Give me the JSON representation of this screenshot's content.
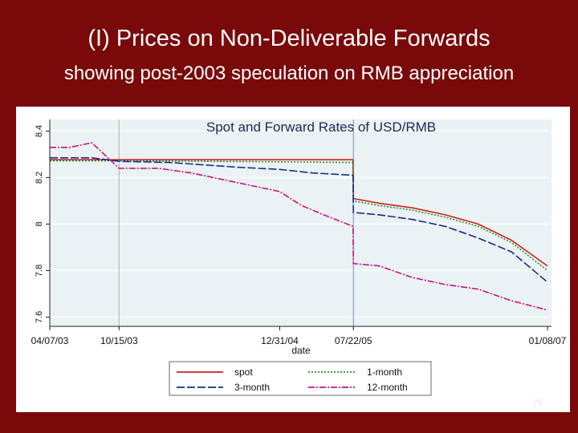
{
  "slide": {
    "title": "(I) Prices on Non-Deliverable Forwards",
    "subtitle": "showing post-2003 speculation on RMB appreciation",
    "page_number": "75"
  },
  "chart_data": {
    "type": "line",
    "title": "Spot and Forward Rates of USD/RMB",
    "xlabel": "date",
    "ylabel": "",
    "x_tick_labels": [
      "04/07/03",
      "10/15/03",
      "12/31/04",
      "07/22/05",
      "01/08/07"
    ],
    "y_tick_labels": [
      "7.6",
      "7.8",
      "8",
      "8.2",
      "8.4"
    ],
    "ylim": [
      7.56,
      8.45
    ],
    "xlim": [
      "2003-04-07",
      "2007-01-08"
    ],
    "grid": "horizontal",
    "legend_position": "bottom",
    "vertical_lines": [
      "2003-10-15",
      "2005-07-22"
    ],
    "series": [
      {
        "name": "spot",
        "color": "#cc2222",
        "dash": "solid",
        "points": [
          [
            "2003-04-07",
            8.277
          ],
          [
            "2003-10-15",
            8.277
          ],
          [
            "2004-06-01",
            8.277
          ],
          [
            "2004-12-31",
            8.277
          ],
          [
            "2005-07-21",
            8.277
          ],
          [
            "2005-07-22",
            8.11
          ],
          [
            "2005-10-01",
            8.09
          ],
          [
            "2006-01-01",
            8.07
          ],
          [
            "2006-04-01",
            8.04
          ],
          [
            "2006-07-01",
            8.0
          ],
          [
            "2006-10-01",
            7.93
          ],
          [
            "2007-01-08",
            7.82
          ]
        ]
      },
      {
        "name": "1-month",
        "color": "#2e8b2e",
        "dash": "2,2",
        "points": [
          [
            "2003-04-07",
            8.272
          ],
          [
            "2003-10-15",
            8.272
          ],
          [
            "2004-06-01",
            8.27
          ],
          [
            "2004-12-31",
            8.268
          ],
          [
            "2005-07-21",
            8.265
          ],
          [
            "2005-07-22",
            8.1
          ],
          [
            "2005-10-01",
            8.08
          ],
          [
            "2006-01-01",
            8.06
          ],
          [
            "2006-04-01",
            8.03
          ],
          [
            "2006-07-01",
            7.99
          ],
          [
            "2006-10-01",
            7.92
          ],
          [
            "2007-01-08",
            7.8
          ]
        ]
      },
      {
        "name": "3-month",
        "color": "#1a2a8c",
        "dash": "10,3",
        "points": [
          [
            "2003-04-07",
            8.285
          ],
          [
            "2003-08-01",
            8.285
          ],
          [
            "2003-10-15",
            8.27
          ],
          [
            "2004-03-01",
            8.265
          ],
          [
            "2004-06-01",
            8.255
          ],
          [
            "2004-09-01",
            8.245
          ],
          [
            "2004-12-31",
            8.235
          ],
          [
            "2005-04-01",
            8.22
          ],
          [
            "2005-07-21",
            8.21
          ],
          [
            "2005-07-22",
            8.05
          ],
          [
            "2005-10-01",
            8.04
          ],
          [
            "2006-01-01",
            8.02
          ],
          [
            "2006-04-01",
            7.99
          ],
          [
            "2006-07-01",
            7.94
          ],
          [
            "2006-10-01",
            7.88
          ],
          [
            "2007-01-08",
            7.75
          ]
        ]
      },
      {
        "name": "12-month",
        "color": "#cc1177",
        "dash": "8,2,2,2",
        "points": [
          [
            "2003-04-07",
            8.33
          ],
          [
            "2003-06-01",
            8.33
          ],
          [
            "2003-08-01",
            8.35
          ],
          [
            "2003-10-15",
            8.24
          ],
          [
            "2004-02-01",
            8.24
          ],
          [
            "2004-05-01",
            8.22
          ],
          [
            "2004-08-01",
            8.19
          ],
          [
            "2004-12-31",
            8.14
          ],
          [
            "2005-03-01",
            8.08
          ],
          [
            "2005-05-01",
            8.04
          ],
          [
            "2005-07-21",
            7.99
          ],
          [
            "2005-07-22",
            7.83
          ],
          [
            "2005-10-01",
            7.82
          ],
          [
            "2006-01-01",
            7.77
          ],
          [
            "2006-04-01",
            7.74
          ],
          [
            "2006-07-01",
            7.72
          ],
          [
            "2006-10-01",
            7.67
          ],
          [
            "2007-01-08",
            7.63
          ]
        ]
      }
    ]
  }
}
